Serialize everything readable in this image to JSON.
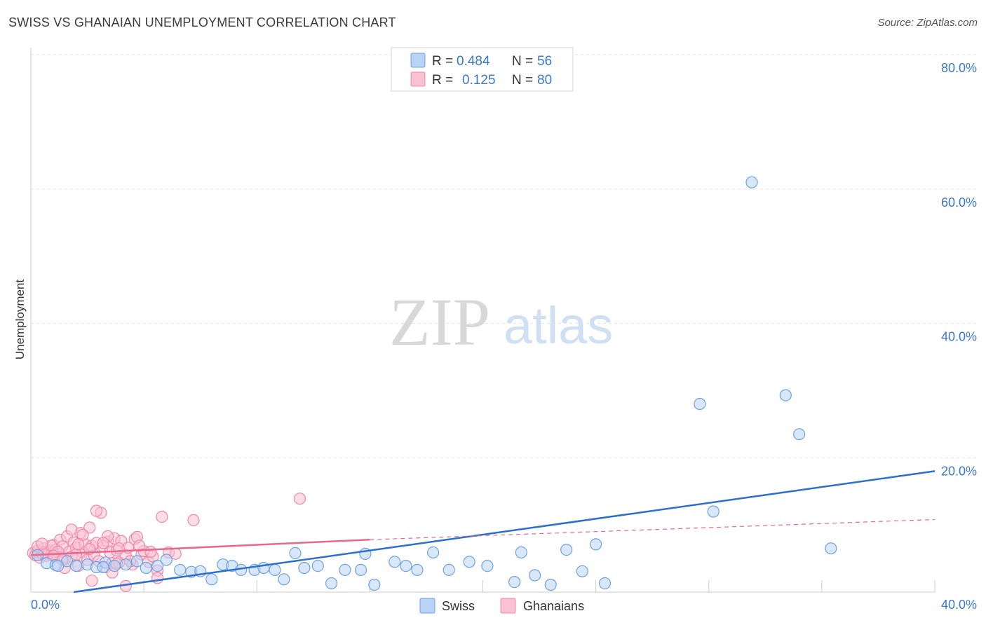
{
  "header": {
    "title": "SWISS VS GHANAIAN UNEMPLOYMENT CORRELATION CHART",
    "source": "Source: ZipAtlas.com"
  },
  "watermark": {
    "zip": "ZIP",
    "atlas": "atlas"
  },
  "legend": {
    "swiss": {
      "r_label": "R =",
      "r_value": "0.484",
      "n_label": "N =",
      "n_value": "56"
    },
    "ghanaians": {
      "r_label": "R =",
      "r_value": "0.125",
      "n_label": "N =",
      "n_value": "80"
    }
  },
  "bottom_legend": {
    "swiss": "Swiss",
    "ghanaians": "Ghanaians"
  },
  "colors": {
    "swiss_fill": "#b8d3f5",
    "swiss_stroke": "#6fa1de",
    "swiss_line": "#2b6fd0",
    "ghana_fill": "#f9c1d2",
    "ghana_stroke": "#ee88a8",
    "ghana_line": "#e8678f",
    "tick": "#3a78c9"
  },
  "chart_data": {
    "type": "scatter",
    "title": "SWISS VS GHANAIAN UNEMPLOYMENT CORRELATION CHART",
    "xlabel": "",
    "ylabel": "Unemployment",
    "xlim": [
      0,
      40
    ],
    "ylim": [
      0,
      80
    ],
    "x_tick_labels": [
      "0.0%",
      "40.0%"
    ],
    "y_tick_labels": [
      "20.0%",
      "40.0%",
      "60.0%",
      "80.0%"
    ],
    "y_ticks": [
      20,
      40,
      60,
      80
    ],
    "series": [
      {
        "name": "Swiss",
        "r": 0.484,
        "n": 56,
        "trend": {
          "x": [
            1.9,
            40.0
          ],
          "y": [
            0.0,
            18.0
          ],
          "dashed_to": null
        },
        "points": [
          [
            0.3,
            5.5
          ],
          [
            0.7,
            4.3
          ],
          [
            1.1,
            4.0
          ],
          [
            1.6,
            4.6
          ],
          [
            2.0,
            3.9
          ],
          [
            2.5,
            4.1
          ],
          [
            2.9,
            3.7
          ],
          [
            3.3,
            4.4
          ],
          [
            3.7,
            3.9
          ],
          [
            4.2,
            4.1
          ],
          [
            4.7,
            4.6
          ],
          [
            5.1,
            3.6
          ],
          [
            5.6,
            3.9
          ],
          [
            6.0,
            4.8
          ],
          [
            6.6,
            3.3
          ],
          [
            7.1,
            3.0
          ],
          [
            7.5,
            3.1
          ],
          [
            8.0,
            1.9
          ],
          [
            8.5,
            4.1
          ],
          [
            8.9,
            3.9
          ],
          [
            9.3,
            3.3
          ],
          [
            9.9,
            3.3
          ],
          [
            10.3,
            3.6
          ],
          [
            10.8,
            3.3
          ],
          [
            11.2,
            1.9
          ],
          [
            11.7,
            5.8
          ],
          [
            12.1,
            3.6
          ],
          [
            12.7,
            3.9
          ],
          [
            13.3,
            1.3
          ],
          [
            13.9,
            3.3
          ],
          [
            14.8,
            5.7
          ],
          [
            14.6,
            3.3
          ],
          [
            15.2,
            1.1
          ],
          [
            16.1,
            4.5
          ],
          [
            16.6,
            3.9
          ],
          [
            17.1,
            3.3
          ],
          [
            17.8,
            5.9
          ],
          [
            18.5,
            3.3
          ],
          [
            19.4,
            4.5
          ],
          [
            20.2,
            3.9
          ],
          [
            21.4,
            1.5
          ],
          [
            21.7,
            5.9
          ],
          [
            22.3,
            2.5
          ],
          [
            23.0,
            1.1
          ],
          [
            23.7,
            6.3
          ],
          [
            24.4,
            3.1
          ],
          [
            25.0,
            7.1
          ],
          [
            25.4,
            1.3
          ],
          [
            29.6,
            28.0
          ],
          [
            30.2,
            12.0
          ],
          [
            31.9,
            61.0
          ],
          [
            33.4,
            29.3
          ],
          [
            34.0,
            23.5
          ],
          [
            35.4,
            6.5
          ],
          [
            1.2,
            3.9
          ],
          [
            3.2,
            3.7
          ]
        ]
      },
      {
        "name": "Ghanaians",
        "r": 0.125,
        "n": 80,
        "trend": {
          "x": [
            0.0,
            15.0
          ],
          "y": [
            5.5,
            7.8
          ],
          "dashed_to": [
            40.0,
            10.8
          ]
        },
        "points": [
          [
            0.1,
            5.8
          ],
          [
            0.2,
            5.5
          ],
          [
            0.3,
            6.2
          ],
          [
            0.4,
            5.1
          ],
          [
            0.5,
            5.7
          ],
          [
            0.6,
            6.5
          ],
          [
            0.7,
            5.4
          ],
          [
            0.8,
            6.1
          ],
          [
            0.9,
            5.6
          ],
          [
            1.0,
            7.0
          ],
          [
            1.1,
            6.3
          ],
          [
            1.2,
            5.2
          ],
          [
            1.3,
            7.8
          ],
          [
            1.4,
            6.8
          ],
          [
            1.5,
            4.9
          ],
          [
            1.6,
            8.3
          ],
          [
            1.7,
            6.0
          ],
          [
            1.8,
            5.3
          ],
          [
            1.9,
            7.4
          ],
          [
            2.0,
            6.6
          ],
          [
            2.1,
            3.9
          ],
          [
            2.2,
            8.8
          ],
          [
            2.3,
            5.9
          ],
          [
            2.4,
            7.1
          ],
          [
            2.5,
            4.8
          ],
          [
            2.6,
            9.6
          ],
          [
            2.7,
            6.9
          ],
          [
            2.8,
            5.5
          ],
          [
            2.9,
            7.3
          ],
          [
            3.0,
            4.6
          ],
          [
            3.1,
            11.8
          ],
          [
            3.2,
            6.8
          ],
          [
            3.3,
            3.7
          ],
          [
            3.4,
            7.5
          ],
          [
            3.5,
            5.9
          ],
          [
            3.6,
            4.3
          ],
          [
            3.7,
            8.0
          ],
          [
            3.8,
            6.2
          ],
          [
            3.9,
            4.4
          ],
          [
            4.0,
            7.6
          ],
          [
            4.2,
            5.5
          ],
          [
            4.3,
            6.6
          ],
          [
            4.5,
            4.1
          ],
          [
            4.6,
            7.9
          ],
          [
            4.7,
            8.2
          ],
          [
            4.9,
            5.6
          ],
          [
            5.0,
            6.1
          ],
          [
            5.2,
            4.5
          ],
          [
            5.4,
            5.3
          ],
          [
            5.6,
            3.2
          ],
          [
            5.8,
            11.2
          ],
          [
            6.1,
            5.9
          ],
          [
            6.4,
            5.7
          ],
          [
            7.2,
            10.7
          ],
          [
            11.9,
            13.9
          ],
          [
            2.7,
            1.7
          ],
          [
            3.6,
            2.9
          ],
          [
            4.2,
            0.9
          ],
          [
            5.6,
            2.1
          ],
          [
            1.5,
            3.6
          ],
          [
            0.3,
            6.8
          ],
          [
            0.6,
            5.9
          ],
          [
            0.9,
            6.9
          ],
          [
            1.2,
            6.0
          ],
          [
            1.8,
            9.3
          ],
          [
            2.3,
            8.5
          ],
          [
            2.9,
            12.1
          ],
          [
            3.4,
            8.3
          ],
          [
            3.8,
            4.2
          ],
          [
            4.4,
            4.6
          ],
          [
            4.8,
            6.9
          ],
          [
            5.3,
            6.0
          ],
          [
            1.0,
            5.4
          ],
          [
            1.4,
            4.8
          ],
          [
            2.0,
            5.6
          ],
          [
            2.6,
            6.4
          ],
          [
            3.2,
            7.3
          ],
          [
            3.9,
            6.5
          ],
          [
            0.5,
            7.2
          ],
          [
            2.1,
            7.1
          ]
        ]
      }
    ]
  }
}
